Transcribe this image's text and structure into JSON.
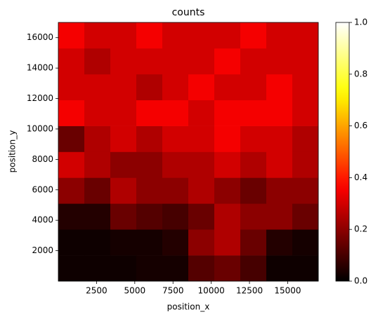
{
  "chart_data": {
    "type": "heatmap",
    "title": "counts",
    "x_label": "position_x",
    "y_label": "position_y",
    "colormap": "hot",
    "xbins": [
      0,
      1700,
      3400,
      5100,
      6800,
      8500,
      10200,
      11900,
      13600,
      15300,
      17000
    ],
    "ybins": [
      0,
      1700,
      3400,
      5100,
      6800,
      8500,
      10200,
      11900,
      13600,
      15300,
      17000
    ],
    "z": [
      [
        0.02,
        0.02,
        0.02,
        0.03,
        0.03,
        0.12,
        0.15,
        0.1,
        0.02,
        0.02
      ],
      [
        0.02,
        0.02,
        0.03,
        0.03,
        0.05,
        0.2,
        0.25,
        0.15,
        0.05,
        0.03
      ],
      [
        0.05,
        0.05,
        0.15,
        0.12,
        0.1,
        0.15,
        0.25,
        0.2,
        0.2,
        0.15
      ],
      [
        0.2,
        0.15,
        0.25,
        0.2,
        0.2,
        0.25,
        0.2,
        0.15,
        0.2,
        0.2
      ],
      [
        0.3,
        0.25,
        0.2,
        0.2,
        0.25,
        0.25,
        0.3,
        0.25,
        0.3,
        0.25
      ],
      [
        0.15,
        0.25,
        0.3,
        0.25,
        0.3,
        0.3,
        0.35,
        0.3,
        0.3,
        0.25
      ],
      [
        0.35,
        0.3,
        0.3,
        0.35,
        0.35,
        0.3,
        0.35,
        0.35,
        0.35,
        0.3
      ],
      [
        0.3,
        0.3,
        0.3,
        0.25,
        0.3,
        0.35,
        0.3,
        0.3,
        0.35,
        0.3
      ],
      [
        0.3,
        0.25,
        0.3,
        0.3,
        0.3,
        0.3,
        0.35,
        0.3,
        0.3,
        0.3
      ],
      [
        0.35,
        0.3,
        0.3,
        0.35,
        0.3,
        0.3,
        0.3,
        0.35,
        0.3,
        0.3
      ]
    ],
    "xlim": [
      0,
      17000
    ],
    "ylim": [
      0,
      17000
    ],
    "xticks": [
      2500,
      5000,
      7500,
      10000,
      12500,
      15000
    ],
    "yticks": [
      2000,
      4000,
      6000,
      8000,
      10000,
      12000,
      14000,
      16000
    ],
    "clim": [
      0,
      1
    ],
    "cticks": [
      {
        "value": 0,
        "label": "0.0"
      },
      {
        "value": 0.2,
        "label": "0.2"
      },
      {
        "value": 0.4,
        "label": "0.4"
      },
      {
        "value": 0.6,
        "label": "0.6"
      },
      {
        "value": 0.8,
        "label": "0.8"
      },
      {
        "value": 1,
        "label": "1.0"
      }
    ]
  }
}
